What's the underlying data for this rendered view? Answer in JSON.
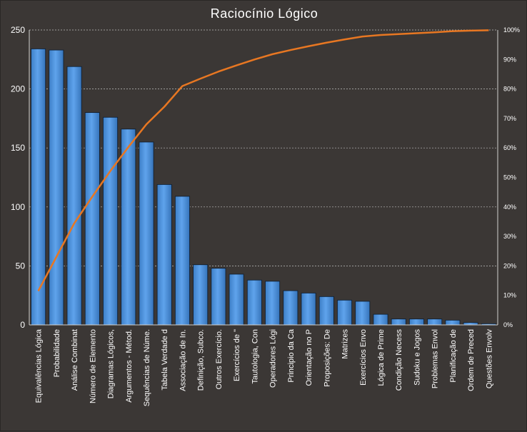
{
  "chart_data": {
    "type": "bar",
    "title": "Raciocínio  Lógico",
    "categories": [
      "Equivalências Lógica",
      "Probabilidade",
      "Análise Combinat",
      "Número de Elemento",
      "Diagramas Lógicos,",
      "Argumentos - Métod.",
      "Sequências de Núme.",
      "Tabela Verdade d",
      "Associação de In.",
      "Definição, Subco.",
      "Outros Exercício.",
      "Exercícios de \"",
      "Tautologia, Con",
      "Operadores Lógi",
      "Principio da Ca",
      "Orientação no P",
      "Proposições: De",
      "Matrizes",
      "Exercícios Envo",
      "Lógica de Prime",
      "Condição Necess",
      "Sudoku e Jogos",
      "Problemas Envol",
      "Planificação de",
      "Ordem de Preced",
      "Questões Envolv"
    ],
    "series": [
      {
        "type": "bar",
        "values": [
          234,
          233,
          219,
          180,
          176,
          166,
          155,
          119,
          109,
          51,
          48,
          43,
          38,
          37,
          29,
          27,
          24,
          21,
          20,
          9,
          5,
          5,
          5,
          4,
          2,
          1
        ]
      },
      {
        "type": "line",
        "axis": "right",
        "values": [
          0.115,
          0.23,
          0.345,
          0.435,
          0.522,
          0.603,
          0.68,
          0.74,
          0.81,
          0.835,
          0.859,
          0.88,
          0.9,
          0.918,
          0.932,
          0.945,
          0.957,
          0.968,
          0.978,
          0.983,
          0.986,
          0.989,
          0.992,
          0.996,
          0.998,
          0.999
        ]
      }
    ],
    "y_ticks": [
      "0",
      "50",
      "100",
      "150",
      "200",
      "250"
    ],
    "y2_ticks": [
      "0%",
      "10%",
      "20%",
      "30%",
      "40%",
      "50%",
      "60%",
      "70%",
      "80%",
      "90%",
      "100%"
    ],
    "ylim": [
      0,
      250
    ],
    "y2lim": [
      0,
      1
    ],
    "xlabel": "",
    "ylabel": "",
    "grid": true,
    "colors": {
      "background": "#3b3735",
      "bar_fill": "#4a90d9",
      "bar_highlight": "#6aaaf0",
      "line": "#e87722",
      "gridline": "#bfbfbf",
      "text": "#ffffff"
    }
  }
}
